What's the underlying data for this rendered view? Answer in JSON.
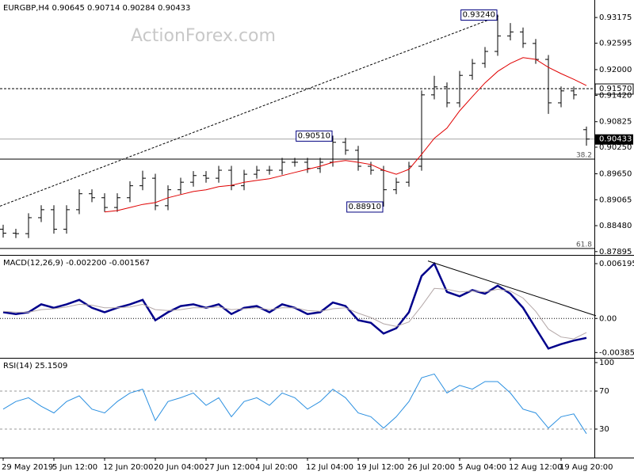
{
  "chart_data": [
    {
      "type": "ohlc",
      "title": "EURGBP,H4  0.90645 0.90714 0.90284 0.90433",
      "watermark": "ActionForex.com",
      "categories": [
        "29 May 2019",
        null,
        null,
        null,
        "5 Jun 12:00",
        null,
        null,
        null,
        "12 Jun 20:00",
        null,
        null,
        null,
        "20 Jun 04:00",
        null,
        null,
        null,
        "27 Jun 12:00",
        null,
        null,
        null,
        "4 Jul 20:00",
        null,
        null,
        null,
        "12 Jul 04:00",
        null,
        null,
        null,
        "19 Jul 12:00",
        null,
        null,
        null,
        "26 Jul 20:00",
        null,
        null,
        null,
        "5 Aug 04:00",
        null,
        null,
        null,
        "12 Aug 12:00",
        null,
        null,
        null,
        "19 Aug 20:00",
        null,
        null
      ],
      "open": [
        0.884,
        0.8831,
        0.883,
        0.8866,
        0.8884,
        0.884,
        0.8884,
        0.892,
        0.8911,
        0.8889,
        0.8911,
        0.8938,
        0.8955,
        0.8893,
        0.8929,
        0.8946,
        0.8961,
        0.8955,
        0.8973,
        0.8938,
        0.8964,
        0.8973,
        0.8973,
        0.8991,
        0.8991,
        0.8977,
        0.8991,
        0.9036,
        0.9018,
        0.8982,
        0.8973,
        0.8929,
        0.8946,
        0.8982,
        0.9143,
        0.9161,
        0.9125,
        0.9187,
        0.9214,
        0.9241,
        0.9276,
        0.9285,
        0.9259,
        0.9223,
        0.9125,
        0.9152,
        0.90645
      ],
      "high": [
        0.885,
        0.8841,
        0.8876,
        0.8894,
        0.8894,
        0.8894,
        0.893,
        0.893,
        0.8921,
        0.8921,
        0.8948,
        0.8972,
        0.8965,
        0.8939,
        0.8956,
        0.8971,
        0.8971,
        0.8983,
        0.8983,
        0.8974,
        0.8983,
        0.8983,
        0.9001,
        0.9001,
        0.9001,
        0.9001,
        0.9051,
        0.9046,
        0.9028,
        0.8992,
        0.8983,
        0.8956,
        0.8992,
        0.9153,
        0.9186,
        0.9171,
        0.9197,
        0.9224,
        0.9251,
        0.9324,
        0.9305,
        0.9295,
        0.9269,
        0.9233,
        0.9162,
        0.9162,
        0.90714
      ],
      "low": [
        0.8821,
        0.882,
        0.882,
        0.8856,
        0.883,
        0.883,
        0.8874,
        0.8901,
        0.8879,
        0.8879,
        0.8901,
        0.8928,
        0.8883,
        0.8883,
        0.8919,
        0.8936,
        0.8945,
        0.8945,
        0.8928,
        0.8928,
        0.8954,
        0.8963,
        0.8963,
        0.8981,
        0.8967,
        0.8967,
        0.8981,
        0.9008,
        0.8972,
        0.8963,
        0.8891,
        0.8919,
        0.8936,
        0.8972,
        0.9133,
        0.9115,
        0.9115,
        0.9177,
        0.9204,
        0.9231,
        0.9266,
        0.9249,
        0.9213,
        0.91,
        0.9115,
        0.9133,
        0.90284
      ],
      "close": [
        0.8831,
        0.883,
        0.8866,
        0.8884,
        0.884,
        0.8884,
        0.892,
        0.8911,
        0.8889,
        0.8911,
        0.8938,
        0.8955,
        0.8893,
        0.8929,
        0.8946,
        0.8961,
        0.8955,
        0.8973,
        0.8938,
        0.8964,
        0.8973,
        0.8973,
        0.8991,
        0.8991,
        0.8977,
        0.8991,
        0.9036,
        0.9018,
        0.8982,
        0.8973,
        0.8929,
        0.8946,
        0.8982,
        0.9143,
        0.9161,
        0.9125,
        0.9187,
        0.9214,
        0.9241,
        0.9276,
        0.9285,
        0.9259,
        0.9223,
        0.9125,
        0.9152,
        0.9143,
        0.90433
      ],
      "color": "#000000",
      "ma": {
        "color": "#e00000",
        "values": [
          null,
          null,
          null,
          null,
          null,
          null,
          null,
          null,
          0.8879,
          0.8882,
          0.8889,
          0.8896,
          0.89,
          0.8911,
          0.8918,
          0.8925,
          0.8929,
          0.8936,
          0.8939,
          0.8946,
          0.895,
          0.8954,
          0.8961,
          0.8968,
          0.8975,
          0.8982,
          0.8991,
          0.8995,
          0.8991,
          0.8986,
          0.8973,
          0.8964,
          0.8975,
          0.9009,
          0.9045,
          0.9068,
          0.9107,
          0.9139,
          0.917,
          0.9196,
          0.9214,
          0.9227,
          0.9223,
          0.9205,
          0.9191,
          0.9178,
          0.9164
        ]
      },
      "ylim": [
        0.8782,
        0.9357
      ],
      "yticks": [
        0.93175,
        0.92595,
        {
          "value": 0.92,
          "label": "0.92000"
        },
        {
          "value": 0.9142,
          "label": "0.91420"
        },
        0.90825,
        {
          "value": 0.9025,
          "label": "0.90250"
        },
        {
          "value": 0.8965,
          "label": "0.89650"
        },
        0.89065,
        {
          "value": 0.8848,
          "label": "0.88480"
        },
        0.87895
      ],
      "hline": {
        "value": 0.9157,
        "label": "0.91570"
      },
      "levels": [
        {
          "value": 0.8998,
          "label": "38.2"
        },
        {
          "value": 0.87966,
          "label": "61.8"
        }
      ],
      "annotations": [
        {
          "value": 0.9324,
          "label": "0.93240"
        },
        {
          "value": 0.9051,
          "label": "0.90510"
        },
        {
          "value": 0.8891,
          "label": "0.88910"
        }
      ],
      "trendline": {
        "x": [
          -0.25,
          39.1
        ],
        "y": [
          0.8892,
          0.9321
        ]
      }
    },
    {
      "type": "macd",
      "title": "MACD(12,26,9) -0.002200 -0.001567",
      "ylim": [
        -0.00445,
        0.00718
      ],
      "yticks": [
        0.006195,
        {
          "value": 0,
          "label": "0.00"
        },
        -0.003851
      ],
      "levels": [
        0
      ],
      "series": [
        {
          "color": "#00008b",
          "values": [
            0.0007,
            0.0005,
            0.0007,
            0.0016,
            0.0012,
            0.0016,
            0.0021,
            0.0012,
            0.0007,
            0.0012,
            0.0016,
            0.0021,
            -0.0002,
            0.0007,
            0.0014,
            0.0016,
            0.0012,
            0.0016,
            0.0005,
            0.0012,
            0.0014,
            0.0007,
            0.0016,
            0.0012,
            0.0005,
            0.0007,
            0.0018,
            0.0014,
            -0.0002,
            -0.0005,
            -0.0017,
            -0.0011,
            0.0007,
            0.0048,
            0.0062,
            0.003,
            0.0025,
            0.0032,
            0.0028,
            0.0037,
            0.0028,
            0.0012,
            -0.0011,
            -0.0034,
            -0.0029,
            -0.0025,
            -0.0022
          ]
        },
        {
          "color": "#b4a8a8",
          "values": [
            0.0008,
            0.0007,
            0.0007,
            0.001,
            0.0011,
            0.0013,
            0.0016,
            0.0015,
            0.0012,
            0.0012,
            0.0013,
            0.0016,
            0.001,
            0.0009,
            0.001,
            0.0012,
            0.0012,
            0.0013,
            0.001,
            0.0011,
            0.0012,
            0.001,
            0.0012,
            0.0012,
            0.0009,
            0.0008,
            0.0011,
            0.0012,
            0.0006,
            0.0001,
            -0.0006,
            -0.0009,
            -0.0004,
            0.0014,
            0.0034,
            0.0033,
            0.003,
            0.0031,
            0.003,
            0.0033,
            0.0031,
            0.0023,
            0.0008,
            -0.0012,
            -0.0021,
            -0.0023,
            -0.0016
          ]
        }
      ],
      "trendline": {
        "x": [
          33.5,
          46.75
        ],
        "y": [
          0.0065,
          0.0003
        ]
      }
    },
    {
      "type": "line",
      "title": "RSI(14) 25.1509",
      "ylim": [
        0,
        105
      ],
      "yticks": [
        100,
        70,
        30
      ],
      "levels": [
        70,
        30
      ],
      "series": [
        {
          "color": "#2a8fe0",
          "values": [
            51,
            59,
            63,
            54,
            47,
            59,
            65,
            51,
            47,
            59,
            68,
            72,
            39,
            59,
            63,
            68,
            55,
            63,
            43,
            59,
            63,
            55,
            68,
            63,
            51,
            59,
            72,
            63,
            47,
            43,
            31,
            43,
            59,
            84,
            88,
            68,
            76,
            72,
            80,
            80,
            68,
            51,
            47,
            31,
            43,
            46,
            25.1509
          ]
        }
      ]
    }
  ]
}
